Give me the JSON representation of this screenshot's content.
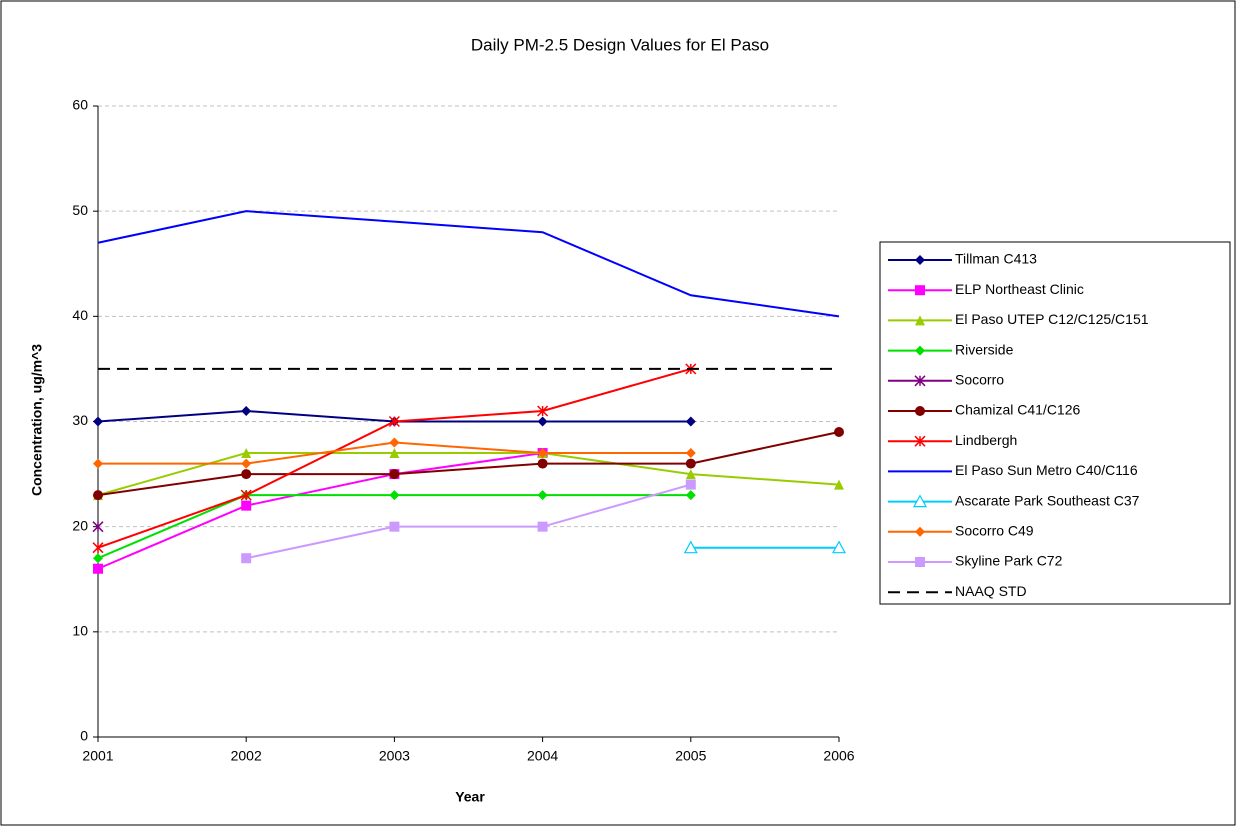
{
  "chart_data": {
    "type": "line",
    "title": "Daily PM-2.5 Design Values for El Paso",
    "x_label": "Year",
    "y_label": "Concentration, ug/m^3",
    "categories": [
      "2001",
      "2002",
      "2003",
      "2004",
      "2005",
      "2006"
    ],
    "ylim": [
      0,
      60
    ],
    "yticks": [
      0,
      10,
      20,
      30,
      40,
      50,
      60
    ],
    "grid": true,
    "legend": "right",
    "series": [
      {
        "name": "Tillman C413",
        "color": "#000080",
        "marker": "diamond",
        "values": [
          30,
          31,
          30,
          30,
          30,
          null
        ]
      },
      {
        "name": "ELP Northeast Clinic",
        "color": "#ff00ff",
        "marker": "square",
        "values": [
          16,
          22,
          25,
          27,
          null,
          null
        ]
      },
      {
        "name": "El Paso UTEP C12/C125/C151",
        "color": "#99cc00",
        "marker": "triangle",
        "values": [
          23,
          27,
          27,
          27,
          25,
          24
        ]
      },
      {
        "name": "Riverside",
        "color": "#00e000",
        "marker": "diamond",
        "values": [
          17,
          23,
          23,
          23,
          23,
          null
        ]
      },
      {
        "name": "Socorro",
        "color": "#800080",
        "marker": "star",
        "values": [
          20,
          null,
          null,
          null,
          null,
          null
        ]
      },
      {
        "name": "Chamizal C41/C126",
        "color": "#800000",
        "marker": "circle",
        "values": [
          23,
          25,
          25,
          26,
          26,
          29
        ]
      },
      {
        "name": "Lindbergh",
        "color": "#ff0000",
        "marker": "star",
        "values": [
          18,
          23,
          30,
          31,
          35,
          null
        ]
      },
      {
        "name": "El Paso Sun Metro C40/C116",
        "color": "#0000ff",
        "marker": "none",
        "values": [
          47,
          50,
          49,
          48,
          42,
          40
        ]
      },
      {
        "name": "Ascarate Park Southeast C37",
        "color": "#00ccff",
        "marker": "open-triangle",
        "values": [
          null,
          null,
          null,
          null,
          18,
          18
        ]
      },
      {
        "name": "Socorro C49",
        "color": "#ff6600",
        "marker": "diamond",
        "values": [
          26,
          26,
          28,
          27,
          27,
          null
        ]
      },
      {
        "name": "Skyline Park C72",
        "color": "#cc99ff",
        "marker": "square",
        "values": [
          null,
          17,
          20,
          20,
          24,
          null
        ]
      },
      {
        "name": "NAAQ STD",
        "color": "#000000",
        "marker": "none",
        "dash": true,
        "values": [
          35,
          35,
          35,
          35,
          35,
          35
        ]
      }
    ]
  }
}
